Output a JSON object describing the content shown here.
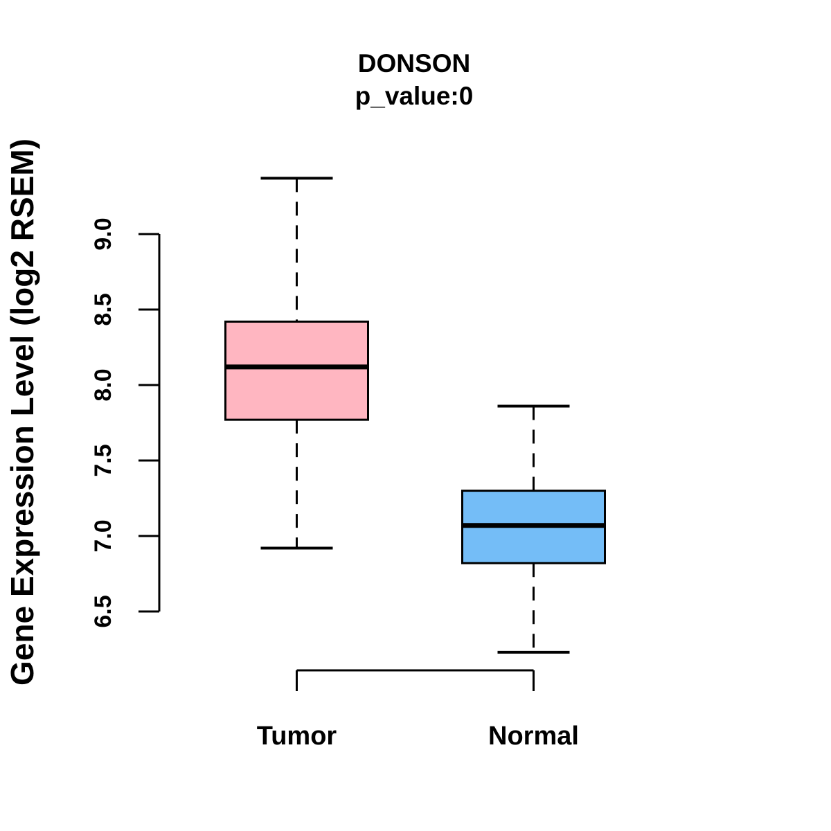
{
  "chart_data": {
    "type": "boxplot",
    "title": "DONSON",
    "subtitle": "p_value:0",
    "ylabel": "Gene Expression Level (log2 RSEM)",
    "xlabel": "",
    "ylim": [
      6.5,
      9.0
    ],
    "yticks": [
      6.5,
      7.0,
      7.5,
      8.0,
      8.5,
      9.0
    ],
    "ytick_labels": [
      "6.5",
      "7.0",
      "7.5",
      "8.0",
      "8.5",
      "9.0"
    ],
    "categories": [
      "Tumor",
      "Normal"
    ],
    "series": [
      {
        "name": "Tumor",
        "lower_whisker": 6.92,
        "q1": 7.77,
        "median": 8.12,
        "q3": 8.42,
        "upper_whisker": 9.37,
        "fill_color": "#FFB6C1"
      },
      {
        "name": "Normal",
        "lower_whisker": 6.23,
        "q1": 6.82,
        "median": 7.07,
        "q3": 7.3,
        "upper_whisker": 7.86,
        "fill_color": "#74BDF7"
      }
    ],
    "style": {
      "axis_color": "#000000",
      "background_color": "#FFFFFF",
      "grid": "off",
      "legend": "none"
    }
  }
}
